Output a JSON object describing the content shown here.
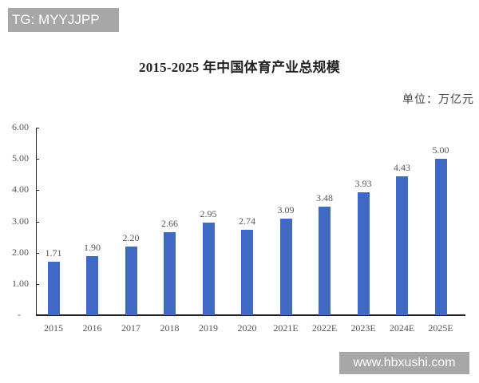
{
  "overlay": {
    "tg_badge": "TG: MYYJJPP",
    "watermark": "www.hbxushi.com"
  },
  "chart": {
    "title": "2015-2025 年中国体育产业总规模",
    "unit": "单位：万亿元",
    "bar_color": "#3f69c2",
    "y_tick_labels": [
      "-",
      "1.00",
      "2.00",
      "3.00",
      "4.00",
      "5.00",
      "6.00"
    ]
  },
  "chart_data": {
    "type": "bar",
    "title": "2015-2025 年中国体育产业总规模",
    "subtitle": "单位：万亿元",
    "xlabel": "",
    "ylabel": "万亿元",
    "categories": [
      "2015",
      "2016",
      "2017",
      "2018",
      "2019",
      "2020",
      "2021E",
      "2022E",
      "2023E",
      "2024E",
      "2025E"
    ],
    "values": [
      1.71,
      1.9,
      2.2,
      2.66,
      2.95,
      2.74,
      3.09,
      3.48,
      3.93,
      4.43,
      5.0
    ],
    "value_labels": [
      "1.71",
      "1.90",
      "2.20",
      "2.66",
      "2.95",
      "2.74",
      "3.09",
      "3.48",
      "3.93",
      "4.43",
      "5.00"
    ],
    "ylim": [
      0,
      6
    ],
    "yticks": [
      0,
      1,
      2,
      3,
      4,
      5,
      6
    ],
    "grid": false,
    "legend": null,
    "color": "#3f69c2"
  }
}
